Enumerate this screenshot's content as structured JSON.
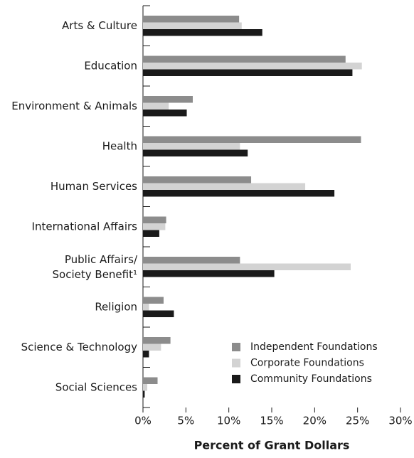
{
  "chart_data": {
    "type": "bar",
    "orientation": "horizontal",
    "xlabel": "Percent of Grant Dollars",
    "categories": [
      "Arts & Culture",
      "Education",
      "Environment & Animals",
      "Health",
      "Human Services",
      "International Affairs",
      "Public Affairs/\nSociety Benefit¹",
      "Religion",
      "Science & Technology",
      "Social Sciences"
    ],
    "series": [
      {
        "name": "Independent Foundations",
        "color": "#8c8c8c",
        "values": [
          11.2,
          23.6,
          5.8,
          25.4,
          12.6,
          2.7,
          11.3,
          2.4,
          3.2,
          1.7
        ]
      },
      {
        "name": "Corporate Foundations",
        "color": "#d3d3d3",
        "values": [
          11.5,
          25.5,
          3.0,
          11.3,
          18.9,
          2.6,
          24.2,
          0.7,
          2.1,
          0.5
        ]
      },
      {
        "name": "Community Foundations",
        "color": "#1a1a1a",
        "values": [
          13.9,
          24.4,
          5.1,
          12.2,
          22.3,
          1.9,
          15.3,
          3.6,
          0.7,
          0.2
        ]
      }
    ],
    "xlim": [
      0,
      30
    ],
    "xticks": [
      {
        "value": 0,
        "label": "0%"
      },
      {
        "value": 5,
        "label": "5%"
      },
      {
        "value": 10,
        "label": "10%"
      },
      {
        "value": 15,
        "label": "15%"
      },
      {
        "value": 20,
        "label": "20%"
      },
      {
        "value": 25,
        "label": "25%"
      },
      {
        "value": 30,
        "label": "30%"
      }
    ],
    "grid": false,
    "legend": "lower right"
  }
}
